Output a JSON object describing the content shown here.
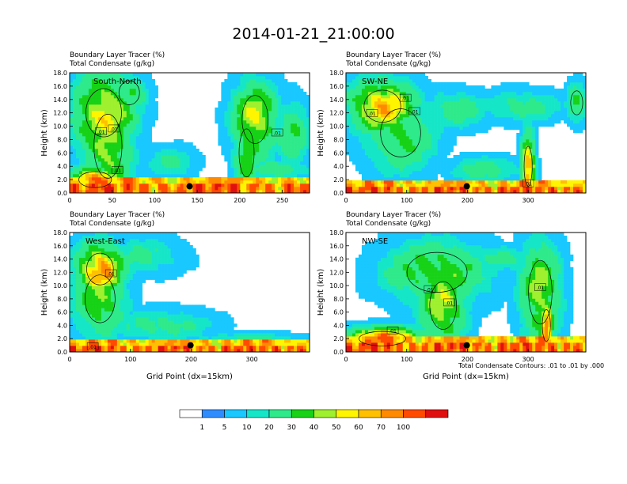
{
  "figure": {
    "title": "2014-01-21_21:00:00",
    "contour_note": "Total Condensate Contours: .01 to .01 by .000"
  },
  "colors": {
    "bins": [
      "#ffffff",
      "#2f8cff",
      "#18c8ff",
      "#16e6c8",
      "#2fea8a",
      "#17d217",
      "#9ff02e",
      "#fff500",
      "#ffc000",
      "#ff8a00",
      "#ff4a00",
      "#e01010"
    ],
    "ground_mark": "#000000"
  },
  "chart_data": [
    {
      "type": "heatmap",
      "panel": "top-left",
      "label": "South-North",
      "title_lines": [
        "Boundary Layer Tracer   (%)",
        "Total Condensate   (g/kg)"
      ],
      "ylabel": "Height (km)",
      "xlabel": "",
      "xlim": [
        0,
        282
      ],
      "ylim": [
        0,
        18
      ],
      "xticks": [
        0,
        50,
        100,
        150,
        200,
        250
      ],
      "yticks": [
        "0.0",
        "2.0",
        "4.0",
        "6.0",
        "8.0",
        "10.0",
        "12.0",
        "14.0",
        "16.0",
        "18.0"
      ],
      "contour_labels": [
        {
          "x": 52,
          "y": 9.6,
          "text": ".01"
        },
        {
          "x": 37,
          "y": 9.2,
          "text": ".01"
        },
        {
          "x": 56,
          "y": 3.4,
          "text": ".01"
        },
        {
          "x": 244,
          "y": 9.0,
          "text": ".01"
        }
      ],
      "ground_point": {
        "x": 141,
        "y": 1.0
      },
      "features": [
        {
          "xc": 40,
          "yc": 12,
          "rx": 38,
          "ry": 6,
          "v": 45
        },
        {
          "xc": 45,
          "yc": 7,
          "rx": 30,
          "ry": 8,
          "v": 35
        },
        {
          "xc": 70,
          "yc": 15,
          "rx": 22,
          "ry": 3,
          "v": 22
        },
        {
          "xc": 120,
          "yc": 4.5,
          "rx": 30,
          "ry": 2.5,
          "v": 12
        },
        {
          "xc": 30,
          "yc": 2,
          "rx": 35,
          "ry": 2,
          "v": 65
        },
        {
          "xc": 218,
          "yc": 11,
          "rx": 28,
          "ry": 6,
          "v": 40
        },
        {
          "xc": 208,
          "yc": 6,
          "rx": 16,
          "ry": 6,
          "v": 28
        },
        {
          "xc": 262,
          "yc": 9,
          "rx": 22,
          "ry": 5,
          "v": 20
        },
        {
          "xc": 245,
          "yc": 3.5,
          "rx": 40,
          "ry": 1.5,
          "v": 18
        }
      ],
      "boundary_layer_depth_km": 1.2
    },
    {
      "type": "heatmap",
      "panel": "top-right",
      "label": "SW-NE",
      "title_lines": [
        "Boundary Layer Tracer   (%)",
        "Total Condensate   (g/kg)"
      ],
      "ylabel": "Height (km)",
      "xlabel": "",
      "xlim": [
        0,
        395
      ],
      "ylim": [
        0,
        18
      ],
      "xticks": [
        0,
        100,
        200,
        300
      ],
      "yticks": [
        "0.0",
        "2.0",
        "4.0",
        "6.0",
        "8.0",
        "10.0",
        "12.0",
        "14.0",
        "16.0",
        "18.0"
      ],
      "contour_labels": [
        {
          "x": 43,
          "y": 11.9,
          "text": ".01"
        },
        {
          "x": 98,
          "y": 14.2,
          "text": ".01"
        },
        {
          "x": 113,
          "y": 12.2,
          "text": ".01"
        },
        {
          "x": 300,
          "y": 1.4,
          "text": ".01"
        }
      ],
      "ground_point": {
        "x": 199,
        "y": 1.0
      },
      "features": [
        {
          "xc": 60,
          "yc": 13,
          "rx": 55,
          "ry": 4,
          "v": 55
        },
        {
          "xc": 90,
          "yc": 9,
          "rx": 60,
          "ry": 6,
          "v": 25
        },
        {
          "xc": 180,
          "yc": 12.5,
          "rx": 60,
          "ry": 3,
          "v": 15
        },
        {
          "xc": 290,
          "yc": 13,
          "rx": 70,
          "ry": 2.5,
          "v": 14
        },
        {
          "xc": 300,
          "yc": 4,
          "rx": 12,
          "ry": 5,
          "v": 60
        },
        {
          "xc": 230,
          "yc": 3.5,
          "rx": 60,
          "ry": 2,
          "v": 16
        },
        {
          "xc": 380,
          "yc": 13.5,
          "rx": 18,
          "ry": 3,
          "v": 22
        }
      ],
      "boundary_layer_depth_km": 1.0
    },
    {
      "type": "heatmap",
      "panel": "bottom-left",
      "label": "West-East",
      "title_lines": [
        "Boundary Layer Tracer   (%)",
        "Total Condensate   (g/kg)"
      ],
      "ylabel": "Height (km)",
      "xlabel": "Grid Point (dx=15km)",
      "xlim": [
        0,
        395
      ],
      "ylim": [
        0,
        18
      ],
      "xticks": [
        0,
        100,
        200,
        300
      ],
      "yticks": [
        "0.0",
        "2.0",
        "4.0",
        "6.0",
        "8.0",
        "10.0",
        "12.0",
        "14.0",
        "16.0",
        "18.0"
      ],
      "contour_labels": [
        {
          "x": 68,
          "y": 11.8,
          "text": ".01"
        },
        {
          "x": 38,
          "y": 0.8,
          "text": ".01"
        }
      ],
      "ground_point": {
        "x": 199,
        "y": 1.0
      },
      "features": [
        {
          "xc": 50,
          "yc": 12.5,
          "rx": 40,
          "ry": 4,
          "v": 62
        },
        {
          "xc": 50,
          "yc": 8,
          "rx": 45,
          "ry": 6,
          "v": 30
        },
        {
          "xc": 120,
          "yc": 14.5,
          "rx": 70,
          "ry": 3,
          "v": 12
        },
        {
          "xc": 150,
          "yc": 4,
          "rx": 90,
          "ry": 2.5,
          "v": 14
        },
        {
          "xc": 290,
          "yc": 2,
          "rx": 90,
          "ry": 1,
          "v": 12
        }
      ],
      "boundary_layer_depth_km": 1.0
    },
    {
      "type": "heatmap",
      "panel": "bottom-right",
      "label": "NW-SE",
      "title_lines": [
        "Boundary Layer Tracer   (%)",
        "Total Condensate   (g/kg)"
      ],
      "ylabel": "Height (km)",
      "xlabel": "Grid Point (dx=15km)",
      "xlim": [
        0,
        395
      ],
      "ylim": [
        0,
        18
      ],
      "xticks": [
        0,
        100,
        200,
        300
      ],
      "yticks": [
        "0.0",
        "2.0",
        "4.0",
        "6.0",
        "8.0",
        "10.0",
        "12.0",
        "14.0",
        "16.0",
        "18.0"
      ],
      "contour_labels": [
        {
          "x": 138,
          "y": 9.4,
          "text": ".01"
        },
        {
          "x": 170,
          "y": 7.4,
          "text": ".01"
        },
        {
          "x": 77,
          "y": 3.2,
          "text": ".01"
        },
        {
          "x": 320,
          "y": 9.7,
          "text": ".01"
        }
      ],
      "ground_point": {
        "x": 199,
        "y": 1.0
      },
      "features": [
        {
          "xc": 150,
          "yc": 12,
          "rx": 90,
          "ry": 5,
          "v": 28
        },
        {
          "xc": 160,
          "yc": 7,
          "rx": 40,
          "ry": 6,
          "v": 38
        },
        {
          "xc": 320,
          "yc": 9,
          "rx": 35,
          "ry": 8,
          "v": 35
        },
        {
          "xc": 330,
          "yc": 4,
          "rx": 12,
          "ry": 4,
          "v": 62
        },
        {
          "xc": 60,
          "yc": 2,
          "rx": 70,
          "ry": 1.8,
          "v": 68
        },
        {
          "xc": 260,
          "yc": 14,
          "rx": 50,
          "ry": 2,
          "v": 14
        }
      ],
      "boundary_layer_depth_km": 1.2
    },
    {
      "type": "colorbar",
      "labels": [
        "1",
        "5",
        "10",
        "20",
        "30",
        "40",
        "50",
        "60",
        "70",
        "100"
      ],
      "bins": 12
    }
  ]
}
